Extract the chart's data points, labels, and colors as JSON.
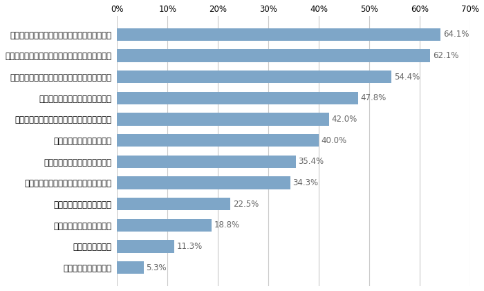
{
  "categories": [
    "安全な住まい（耕震、耕火、セキュリティ等）",
    "快適な住まい（冬温かく夏涼しい、空気浄化等）",
    "長く住める（資産価値が持続、劣化しづらい）",
    "日当たり、風通し、眺望等の環境",
    "家族のライフスタイルにあった間取り、空間",
    "周辺環境や通勤等の利便性",
    "省エネルギー（光熱費が安い）",
    "設備（キッチンやバスルーム等）の充実",
    "内観の意匠性（デザイン）",
    "外観の意匠性（デザイン）",
    "地域コミュニティ",
    "あてはまるものはない"
  ],
  "values": [
    64.1,
    62.1,
    54.4,
    47.8,
    42.0,
    40.0,
    35.4,
    34.3,
    22.5,
    18.8,
    11.3,
    5.3
  ],
  "bar_color": "#7EA6C8",
  "xlim": [
    0,
    70
  ],
  "xtick_values": [
    0,
    10,
    20,
    30,
    40,
    50,
    60,
    70
  ],
  "xtick_labels": [
    "0%",
    "10%",
    "20%",
    "30%",
    "40%",
    "50%",
    "60%",
    "70%"
  ],
  "value_label_fontsize": 8.5,
  "category_fontsize": 8.5,
  "tick_fontsize": 8.5,
  "bar_height": 0.6,
  "figure_width": 7.0,
  "figure_height": 4.21,
  "dpi": 100,
  "background_color": "#ffffff",
  "grid_color": "#c8c8c8",
  "value_label_color": "#666666"
}
